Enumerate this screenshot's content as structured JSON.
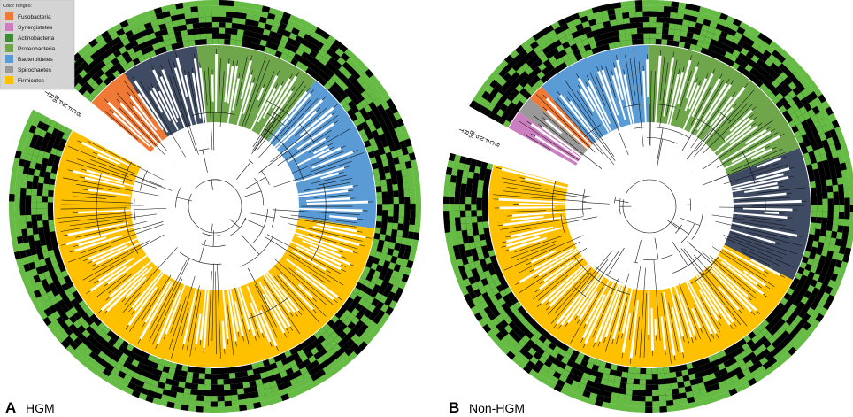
{
  "legend": {
    "title": "Color ranges:",
    "items": [
      {
        "label": "Fusobacteria",
        "color": "#f07a35"
      },
      {
        "label": "Synergistetes",
        "color": "#cc7fc0"
      },
      {
        "label": "Actinobacteria",
        "color": "#3f8a34"
      },
      {
        "label": "Proteobacteria",
        "color": "#6fa64c"
      },
      {
        "label": "Bacteroidetes",
        "color": "#5b9bd5"
      },
      {
        "label": "Spirochaetes",
        "color": "#999999"
      },
      {
        "label": "Firmicutes",
        "color": "#ffc000"
      }
    ]
  },
  "ring_labels": [
    "T",
    "R",
    "B6",
    "P",
    "N",
    "F",
    "C",
    "B"
  ],
  "colors": {
    "ring_green": "#66bb44",
    "ring_black": "#000000",
    "slate": "#3e4b63"
  },
  "panels": [
    {
      "letter": "A",
      "name": "HGM",
      "clades": [
        {
          "phylum": "Fusobacteria",
          "color": "#f07a35",
          "share": 0.045
        },
        {
          "phylum": "unlabelled",
          "color": "#3e4b63",
          "share": 0.08
        },
        {
          "phylum": "Proteobacteria",
          "color": "#6fa64c",
          "share": 0.13
        },
        {
          "phylum": "Bacteroidetes",
          "color": "#5b9bd5",
          "share": 0.17
        },
        {
          "phylum": "Firmicutes",
          "color": "#ffc000",
          "share": 0.575
        }
      ]
    },
    {
      "letter": "B",
      "name": "Non-HGM",
      "clades": [
        {
          "phylum": "Synergistetes",
          "color": "#cc7fc0",
          "share": 0.02
        },
        {
          "phylum": "Spirochaetes",
          "color": "#999999",
          "share": 0.018
        },
        {
          "phylum": "Fusobacteria",
          "color": "#f07a35",
          "share": 0.017
        },
        {
          "phylum": "Bacteroidetes",
          "color": "#5b9bd5",
          "share": 0.12
        },
        {
          "phylum": "Proteobacteria",
          "color": "#6fa64c",
          "share": 0.2
        },
        {
          "phylum": "unlabelled",
          "color": "#3e4b63",
          "share": 0.14
        },
        {
          "phylum": "Firmicutes",
          "color": "#ffc000",
          "share": 0.485
        }
      ]
    }
  ]
}
